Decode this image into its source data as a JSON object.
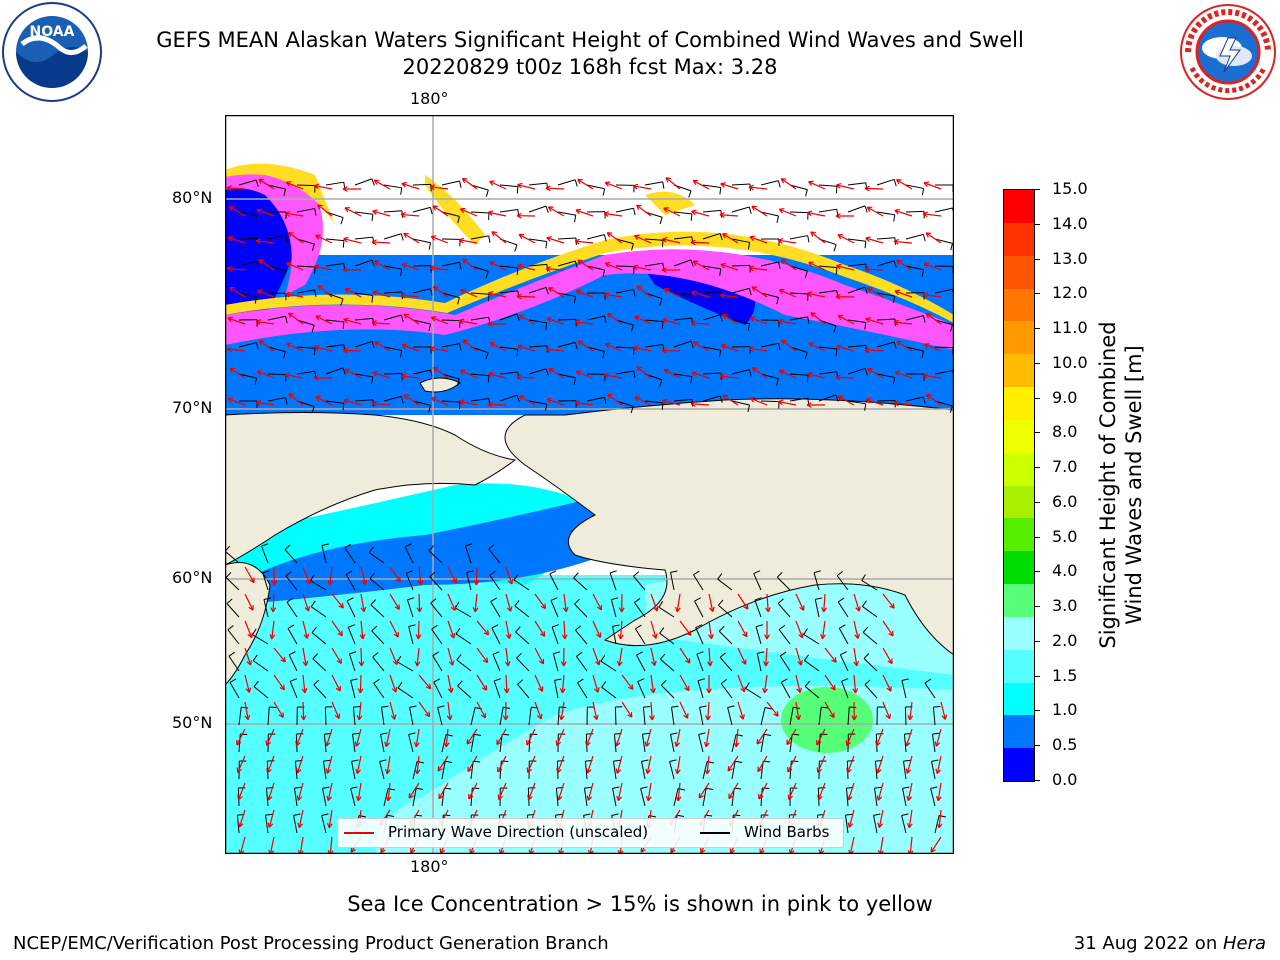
{
  "header": {
    "title_line1": "GEFS MEAN Alaskan Waters Significant Height of Combined Wind Waves and Swell",
    "title_line2": "20220829 t00z 168h fcst   Max: 3.28"
  },
  "logos": {
    "noaa_text": "NOAA",
    "noaa_ring_text": "NATIONAL OCEANIC AND ATMOSPHERIC ADMINISTRATION · U.S. DEPARTMENT OF COMMERCE",
    "nws_ring_text": "NATIONAL WEATHER SERVICE"
  },
  "map": {
    "lon_label_top": "180°",
    "lon_label_bottom": "180°",
    "lat_labels": [
      "80°N",
      "70°N",
      "60°N",
      "50°N"
    ],
    "colors": {
      "land": "#efecdc",
      "ocean_low": "#0077ff",
      "ocean_mid": "#00ffff",
      "ocean_high": "#99ffff",
      "deep_blue": "#0000ff",
      "ice_pink": "#ff55ff",
      "ice_yellow": "#ffdd22",
      "wave_arrow": "#ee0000",
      "wind_barb": "#000000"
    }
  },
  "legend": {
    "wave_label": "Primary Wave Direction (unscaled)",
    "wind_label": "Wind Barbs"
  },
  "colorbar": {
    "label_line1": "Significant Height of Combined",
    "label_line2": "Wind Waves and Swell [m]",
    "ticks": [
      "15.0",
      "14.0",
      "13.0",
      "12.0",
      "11.0",
      "10.0",
      "9.0",
      "8.0",
      "7.0",
      "6.0",
      "5.0",
      "4.0",
      "3.0",
      "2.0",
      "1.5",
      "1.0",
      "0.5",
      "0.0"
    ],
    "colors_top_to_bottom": [
      "#ff0000",
      "#ff3300",
      "#ff5500",
      "#ff7700",
      "#ff9900",
      "#ffbb00",
      "#ffee00",
      "#eeff00",
      "#ccff00",
      "#aaee00",
      "#55ee00",
      "#00dd00",
      "#55ff77",
      "#99ffff",
      "#55ffff",
      "#00ffff",
      "#0077ff",
      "#0000ff"
    ]
  },
  "caption": "Sea Ice Concentration > 15% is shown in pink to yellow",
  "footer": {
    "left": "NCEP/EMC/Verification Post Processing Product Generation Branch",
    "date": "31 Aug 2022 on ",
    "machine": "Hera"
  }
}
